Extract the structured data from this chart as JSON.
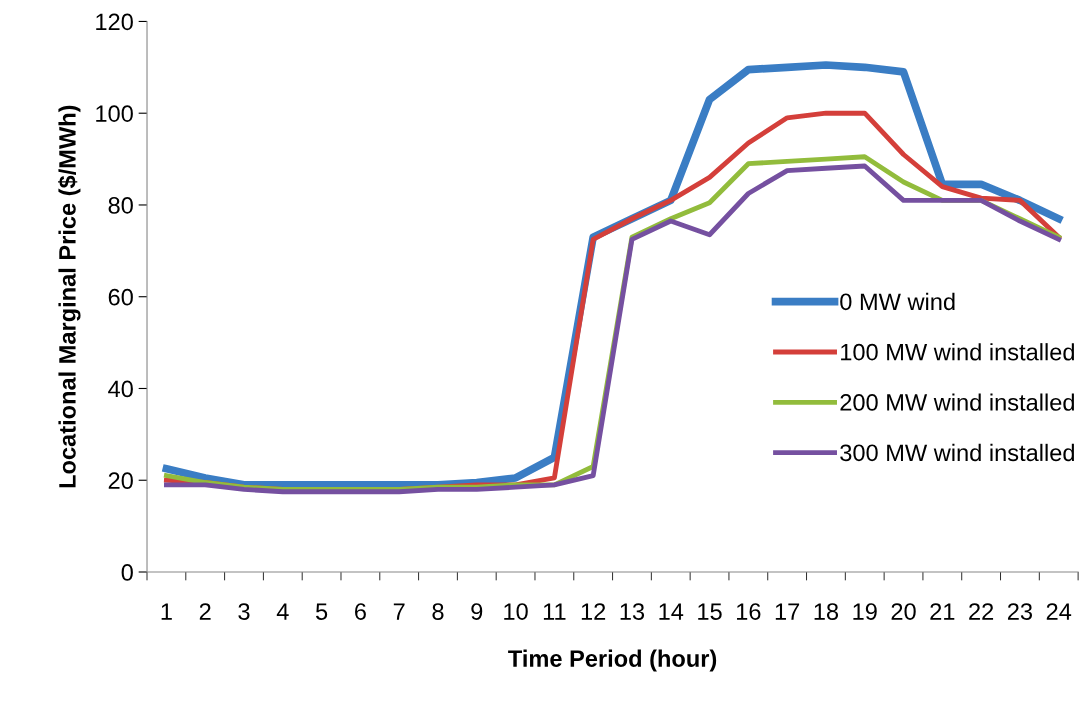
{
  "chart_data": {
    "type": "line",
    "xlabel": "Time Period (hour)",
    "ylabel": "Locational Marginal Price ($/MWh)",
    "categories": [
      "1",
      "2",
      "3",
      "4",
      "5",
      "6",
      "7",
      "8",
      "9",
      "10",
      "11",
      "12",
      "13",
      "14",
      "15",
      "16",
      "17",
      "18",
      "19",
      "20",
      "21",
      "22",
      "23",
      "24"
    ],
    "series": [
      {
        "name": "0 MW wind",
        "color": "#3a7dc4",
        "values": [
          22.5,
          20.5,
          19,
          19,
          19,
          19,
          19,
          19,
          19.5,
          20.5,
          25,
          73,
          77,
          81,
          103,
          109.5,
          110,
          110.5,
          110,
          109,
          84.5,
          84.5,
          81,
          77
        ]
      },
      {
        "name": "100 MW wind installed",
        "color": "#d43f3a",
        "values": [
          20,
          19.5,
          18.5,
          18,
          18,
          18,
          18,
          18.5,
          19,
          19,
          20.5,
          72.5,
          77,
          81,
          86,
          93.5,
          99,
          100,
          100,
          91,
          84,
          81.5,
          81,
          73
        ]
      },
      {
        "name": "200 MW wind installed",
        "color": "#92bc3c",
        "values": [
          21,
          19.5,
          18.5,
          18,
          18,
          18,
          18,
          18.5,
          18.5,
          19,
          19,
          23,
          73,
          77,
          80.5,
          89,
          89.5,
          90,
          90.5,
          85,
          81,
          81,
          77,
          73
        ]
      },
      {
        "name": "300 MW wind installed",
        "color": "#7550a0",
        "values": [
          19,
          19,
          18,
          17.5,
          17.5,
          17.5,
          17.5,
          18,
          18,
          18.5,
          19,
          21,
          72.5,
          76.5,
          73.5,
          82.5,
          87.5,
          88,
          88.5,
          81,
          81,
          81,
          76.5,
          72.5
        ]
      }
    ],
    "ylim": [
      0,
      120
    ],
    "yticks": [
      0,
      20,
      40,
      60,
      80,
      100,
      120
    ],
    "grid": false,
    "legend": "center right",
    "marker": "none",
    "line_style": "solid"
  }
}
